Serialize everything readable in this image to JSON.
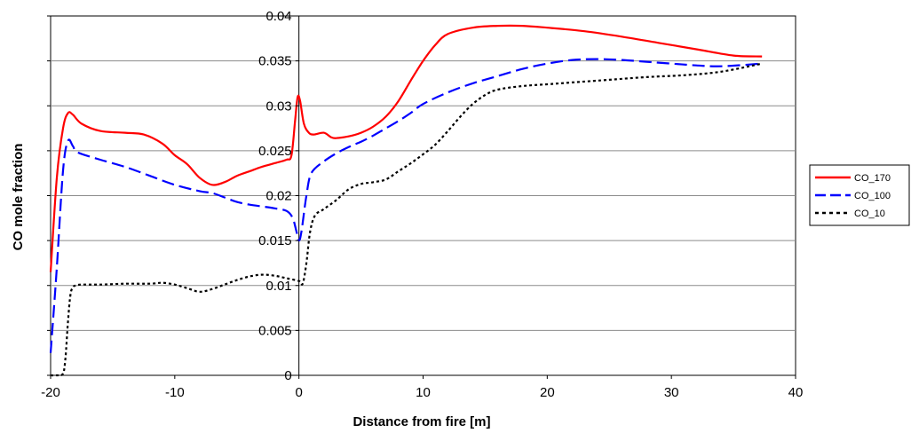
{
  "chart_data": {
    "type": "line",
    "xlabel": "Distance from fire [m]",
    "ylabel": "CO mole fraction",
    "xlim": [
      -20,
      40
    ],
    "ylim": [
      0,
      0.04
    ],
    "x_ticks": [
      "-20",
      "-10",
      "0",
      "10",
      "20",
      "30",
      "40"
    ],
    "y_ticks": [
      "0",
      "0.005",
      "0.01",
      "0.015",
      "0.02",
      "0.025",
      "0.03",
      "0.035",
      "0.04"
    ],
    "grid": true,
    "legend_position": "right",
    "series": [
      {
        "name": "CO_170",
        "color": "#ff0000",
        "dash": "solid",
        "x": [
          -20,
          -19.5,
          -19,
          -18.6,
          -18.2,
          -17.5,
          -16,
          -14,
          -12.5,
          -11,
          -10,
          -9,
          -8,
          -7,
          -6,
          -5,
          -4,
          -3,
          -2,
          -1,
          -0.6,
          -0.3,
          -0.1,
          0.1,
          0.4,
          0.8,
          1.2,
          2,
          2.6,
          3,
          4,
          5,
          6,
          7,
          8,
          9,
          10,
          11,
          12,
          14,
          16,
          18,
          20,
          23,
          26,
          29,
          32,
          35,
          37.3
        ],
        "y": [
          0.0115,
          0.022,
          0.0275,
          0.0292,
          0.029,
          0.028,
          0.0272,
          0.027,
          0.0268,
          0.0258,
          0.0245,
          0.0235,
          0.022,
          0.0212,
          0.0215,
          0.0222,
          0.0227,
          0.0232,
          0.0236,
          0.024,
          0.0245,
          0.0285,
          0.031,
          0.0305,
          0.028,
          0.027,
          0.0268,
          0.027,
          0.0265,
          0.0264,
          0.0266,
          0.027,
          0.0277,
          0.0288,
          0.0305,
          0.0328,
          0.035,
          0.0368,
          0.038,
          0.0387,
          0.0389,
          0.0389,
          0.0387,
          0.0383,
          0.0377,
          0.037,
          0.0363,
          0.0356,
          0.0355
        ]
      },
      {
        "name": "CO_100",
        "color": "#0000ff",
        "dash": "dashed",
        "x": [
          -20,
          -19.5,
          -19,
          -18.6,
          -18.2,
          -17.8,
          -16,
          -14,
          -12,
          -10,
          -8,
          -7,
          -6,
          -5,
          -4,
          -3,
          -2,
          -1,
          -0.5,
          -0.2,
          0,
          0.2,
          0.6,
          1,
          2,
          3,
          4,
          5,
          6,
          7,
          8,
          9,
          10,
          12,
          14,
          16,
          18,
          20,
          22,
          24,
          26,
          28,
          30,
          32,
          34,
          37.3
        ],
        "y": [
          0.0025,
          0.012,
          0.0228,
          0.0261,
          0.0255,
          0.0248,
          0.024,
          0.0232,
          0.0222,
          0.0212,
          0.0205,
          0.0203,
          0.0198,
          0.0193,
          0.019,
          0.0188,
          0.0186,
          0.0183,
          0.0175,
          0.016,
          0.015,
          0.016,
          0.02,
          0.0225,
          0.0238,
          0.0247,
          0.0254,
          0.026,
          0.0267,
          0.0275,
          0.0283,
          0.0292,
          0.0302,
          0.0315,
          0.0325,
          0.0333,
          0.0341,
          0.0347,
          0.0351,
          0.0352,
          0.0351,
          0.0349,
          0.0347,
          0.0345,
          0.0344,
          0.0347
        ]
      },
      {
        "name": "CO_10",
        "color": "#000000",
        "dash": "dotted",
        "x": [
          -20,
          -19.5,
          -19,
          -18.8,
          -18.6,
          -18.4,
          -18.2,
          -18,
          -17.5,
          -16,
          -14,
          -12,
          -11,
          -10,
          -9,
          -8,
          -7,
          -6,
          -5,
          -4,
          -3,
          -2,
          -1,
          0,
          0.3,
          0.6,
          0.9,
          1.3,
          2,
          3,
          4,
          5,
          6,
          7,
          8,
          9,
          10,
          11,
          12,
          13,
          14,
          15,
          16,
          18,
          20,
          22,
          25,
          28,
          31,
          34,
          37.3
        ],
        "y": [
          0,
          0,
          0.0002,
          0.002,
          0.006,
          0.009,
          0.0098,
          0.01,
          0.0101,
          0.0101,
          0.0102,
          0.0102,
          0.0103,
          0.0101,
          0.0097,
          0.0093,
          0.0096,
          0.0101,
          0.0106,
          0.011,
          0.0112,
          0.0111,
          0.0108,
          0.0105,
          0.0102,
          0.0125,
          0.016,
          0.0178,
          0.0185,
          0.0195,
          0.0207,
          0.0213,
          0.0215,
          0.0218,
          0.0227,
          0.0236,
          0.0246,
          0.0257,
          0.0272,
          0.0288,
          0.0302,
          0.0312,
          0.0318,
          0.0322,
          0.0324,
          0.0326,
          0.0329,
          0.0332,
          0.0334,
          0.0338,
          0.0347
        ]
      }
    ]
  }
}
